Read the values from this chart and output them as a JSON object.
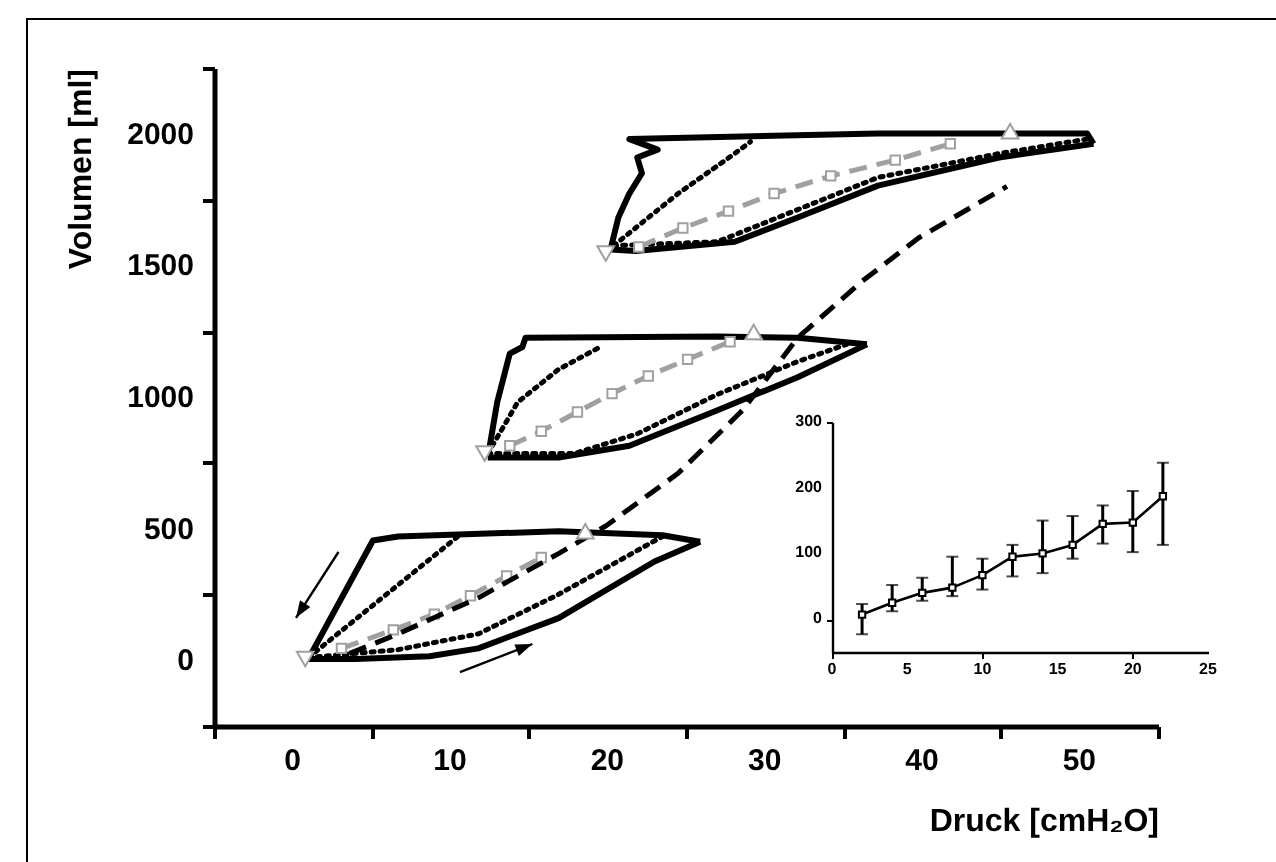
{
  "chart_data": [
    {
      "type": "line",
      "xlabel": "Druck [cmH₂O]",
      "ylabel": "Volumen [ml]",
      "xlim": [
        -5,
        55
      ],
      "ylim": [
        -250,
        2250
      ],
      "xticks": [
        {
          "value": -5,
          "label": null
        },
        0,
        {
          "value": 5,
          "label": null
        },
        10,
        {
          "value": 15,
          "label": null
        },
        20,
        {
          "value": 25,
          "label": null
        },
        30,
        {
          "value": 35,
          "label": null
        },
        40,
        {
          "value": 45,
          "label": null
        },
        50,
        {
          "value": 55,
          "label": null
        }
      ],
      "yticks": [
        {
          "value": -250,
          "label": null
        },
        0,
        {
          "value": 250,
          "label": null
        },
        500,
        {
          "value": 750,
          "label": null
        },
        1000,
        {
          "value": 1250,
          "label": null
        },
        1500,
        {
          "value": 1750,
          "label": null
        },
        2000,
        {
          "value": 2250,
          "label": null
        }
      ],
      "series": [
        {
          "color": "#000000",
          "line_style": "solid",
          "x": [
            1,
            4,
            8.7,
            11.8,
            16.9,
            23,
            25.9
          ],
          "values": [
            5,
            5,
            15,
            45,
            160,
            375,
            450
          ]
        },
        {
          "color": "#000000",
          "line_style": "solid",
          "x": [
            1,
            5.1,
            6.7,
            16.9,
            23.5,
            25.9
          ],
          "values": [
            5,
            455,
            470,
            490,
            475,
            450
          ]
        },
        {
          "color": "#000000",
          "line_style": "dotted",
          "x": [
            1,
            6.7,
            11.8,
            16.9,
            23.5
          ],
          "values": [
            10,
            40,
            100,
            250,
            470
          ]
        },
        {
          "color": "#000000",
          "line_style": "dotted",
          "x": [
            1,
            10.5
          ],
          "values": [
            10,
            470
          ]
        },
        {
          "color": "#a0a0a0",
          "line_style": "dashed",
          "marker": "square",
          "x": [
            3.1,
            6.4,
            9,
            11.3,
            13.6,
            15.8
          ],
          "values": [
            45,
            115,
            175,
            245,
            320,
            390
          ]
        },
        {
          "color": "#000000",
          "line_style": "solid",
          "x": [
            12.4,
            16.9,
            21.4,
            27,
            32.1,
            36.5
          ],
          "values": [
            770,
            770,
            815,
            950,
            1075,
            1200
          ]
        },
        {
          "color": "#000000",
          "line_style": "solid",
          "x": [
            12.4,
            13,
            13.8,
            14.6,
            14.8,
            27,
            32.1,
            36.5
          ],
          "values": [
            770,
            980,
            1165,
            1190,
            1225,
            1230,
            1225,
            1200
          ]
        },
        {
          "color": "#000000",
          "line_style": "dotted",
          "x": [
            12.4,
            17.9,
            21.9,
            27,
            32.1,
            35.2
          ],
          "values": [
            785,
            785,
            860,
            1010,
            1135,
            1200
          ]
        },
        {
          "color": "#000000",
          "line_style": "dotted",
          "x": [
            12.4,
            14.3,
            16.9,
            19.7
          ],
          "values": [
            785,
            980,
            1105,
            1195
          ]
        },
        {
          "color": "#a0a0a0",
          "line_style": "dashed",
          "marker": "square",
          "x": [
            13.8,
            15.8,
            18.1,
            20.3,
            22.6,
            25.1,
            27.8
          ],
          "values": [
            815,
            870,
            943,
            1013,
            1080,
            1143,
            1210
          ]
        },
        {
          "color": "#000000",
          "line_style": "solid",
          "x": [
            20.2,
            21.8,
            28.1,
            32.1,
            37.2,
            44.9,
            50.9
          ],
          "values": [
            1560,
            1555,
            1590,
            1682,
            1803,
            1910,
            1962
          ]
        },
        {
          "color": "#000000",
          "line_style": "solid",
          "x": [
            20.2,
            20.7,
            21.4,
            22.2,
            21.9,
            23.2,
            21.4,
            37.2,
            50.5,
            50.9
          ],
          "values": [
            1560,
            1682,
            1773,
            1850,
            1910,
            1940,
            1980,
            2001,
            2001,
            1962
          ]
        },
        {
          "color": "#000000",
          "line_style": "dotted",
          "x": [
            20.4,
            27,
            32.1,
            37.2,
            44.9,
            50.5
          ],
          "values": [
            1575,
            1590,
            1712,
            1834,
            1925,
            1980
          ]
        },
        {
          "color": "#000000",
          "line_style": "dotted",
          "x": [
            20.4,
            24.5,
            28.1,
            29.1
          ],
          "values": [
            1575,
            1773,
            1925,
            1970
          ]
        },
        {
          "color": "#a0a0a0",
          "line_style": "dashed",
          "marker": "square",
          "x": [
            22,
            24.8,
            27.7,
            30.6,
            34.2,
            38.3,
            41.8
          ],
          "values": [
            1570,
            1642,
            1706,
            1773,
            1840,
            1900,
            1962
          ]
        },
        {
          "color": "#000000",
          "line_style": "dashed",
          "x": [
            3.6,
            6.7,
            11.8,
            16.9,
            19.9,
            24.5,
            28.6,
            32.1,
            36.2,
            39.8,
            45.4
          ],
          "values": [
            25,
            100,
            237,
            405,
            510,
            710,
            950,
            1225,
            1440,
            1605,
            1800
          ]
        },
        {
          "type": "scatter",
          "color": "#a0a0a0",
          "marker": "triangle",
          "x": [
            18.6,
            29.3,
            45.6
          ],
          "values": [
            490,
            1247,
            2010
          ]
        },
        {
          "type": "scatter",
          "color": "#a0a0a0",
          "marker": "triangle-down",
          "x": [
            0.8,
            12.2,
            19.9
          ],
          "values": [
            5,
            785,
            1545
          ]
        }
      ]
    },
    {
      "type": "line",
      "xlim": [
        0,
        25
      ],
      "ylim": [
        -50,
        300
      ],
      "xticks": [
        0,
        5,
        10,
        15,
        20,
        25
      ],
      "yticks": [
        0,
        100,
        200,
        300
      ],
      "series": [
        {
          "color": "#000000",
          "marker": "square",
          "x": [
            2,
            4,
            6,
            8,
            10,
            12,
            14,
            16,
            18,
            20,
            22
          ],
          "values": [
            7,
            25,
            40,
            48,
            67,
            95,
            100,
            113,
            145,
            147,
            187
          ],
          "errors": [
            [
              -23,
              23
            ],
            [
              12,
              52
            ],
            [
              28,
              63
            ],
            [
              35,
              95
            ],
            [
              45,
              92
            ],
            [
              65,
              113
            ],
            [
              70,
              150
            ],
            [
              92,
              157
            ],
            [
              115,
              173
            ],
            [
              102,
              195
            ],
            [
              113,
              238
            ]
          ]
        }
      ]
    }
  ]
}
